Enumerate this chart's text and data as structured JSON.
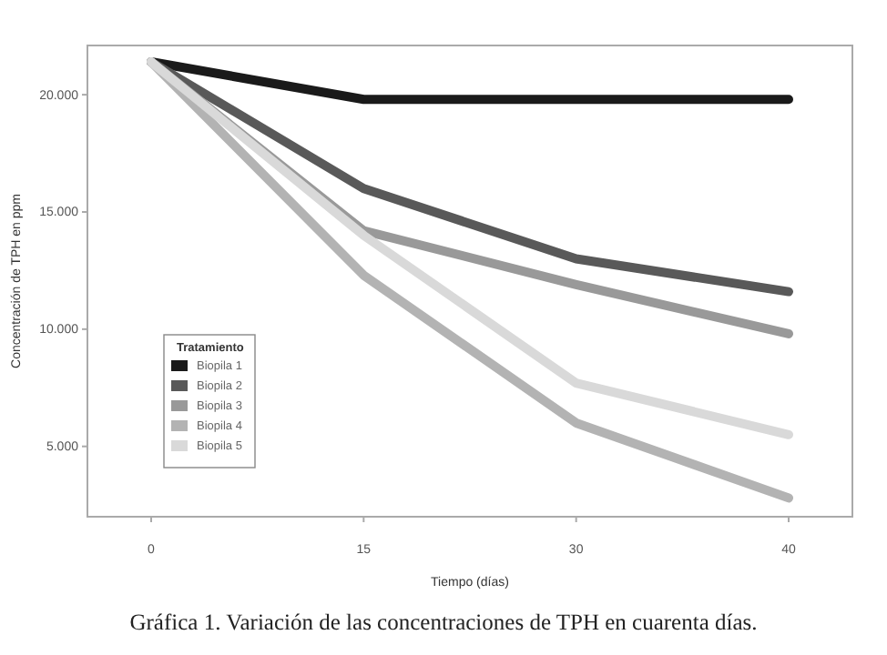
{
  "chart_data": {
    "type": "line",
    "title": "Gráfica 1. Variación de las concentraciones de TPH en cuarenta días.",
    "xlabel": "Tiempo (días)",
    "ylabel": "Concentración de TPH en ppm",
    "legend_title": "Tratamiento",
    "legend": "bottom left",
    "marker": "none",
    "line_style": "solid",
    "grid": false,
    "categories": [
      "0",
      "15",
      "30",
      "40"
    ],
    "ylim": [
      2000,
      22100
    ],
    "yticks": [
      {
        "value": 5000,
        "label": "5.000"
      },
      {
        "value": 10000,
        "label": "10.000"
      },
      {
        "value": 15000,
        "label": "15.000"
      },
      {
        "value": 20000,
        "label": "20.000"
      }
    ],
    "series": [
      {
        "name": "Biopila 1",
        "color": "#1a1a1a",
        "values": [
          21400,
          19800,
          19800,
          19800
        ]
      },
      {
        "name": "Biopila 2",
        "color": "#595959",
        "values": [
          21400,
          16000,
          13000,
          11600
        ]
      },
      {
        "name": "Biopila 3",
        "color": "#999999",
        "values": [
          21400,
          14200,
          11900,
          9800
        ]
      },
      {
        "name": "Biopila 4",
        "color": "#b3b3b3",
        "values": [
          21400,
          12300,
          6000,
          2800
        ]
      },
      {
        "name": "Biopila 5",
        "color": "#d9d9d9",
        "values": [
          21400,
          14000,
          7700,
          5500
        ]
      }
    ]
  }
}
